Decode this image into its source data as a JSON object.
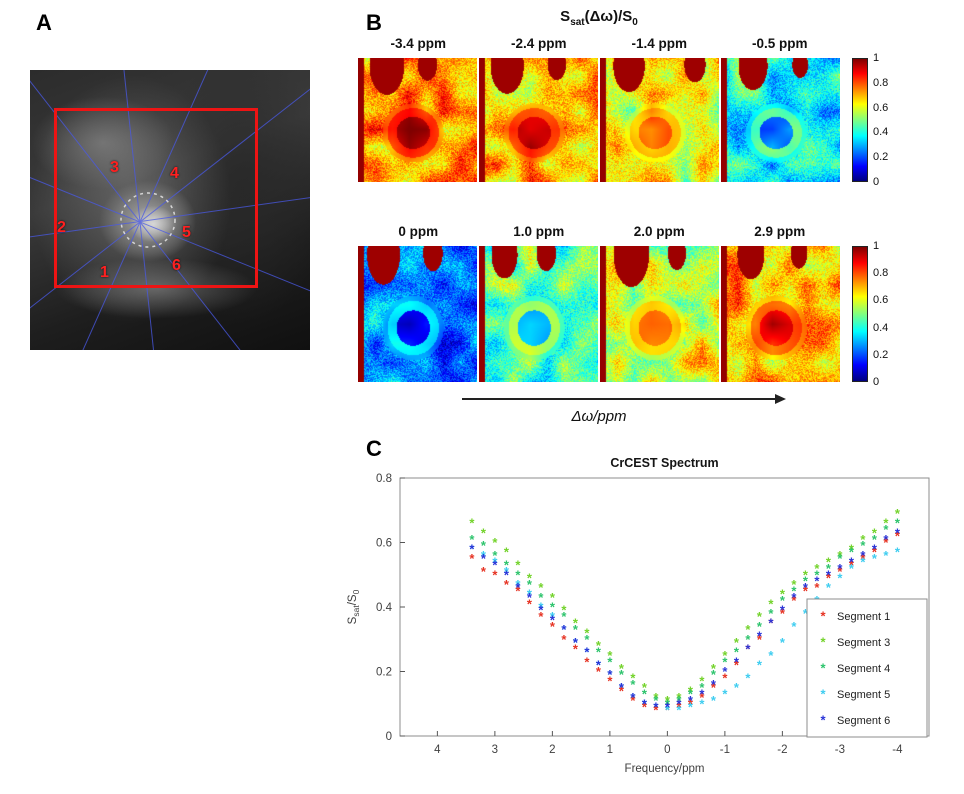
{
  "panel_a": {
    "label": "A",
    "segment_numbers": [
      "1",
      "2",
      "3",
      "4",
      "5",
      "6"
    ]
  },
  "panel_b": {
    "label": "B",
    "title_parts": [
      {
        "t": "S"
      },
      {
        "t": "sat"
      },
      {
        "t": "(Δω)/S"
      },
      {
        "t": "0"
      }
    ],
    "rows": [
      {
        "offset_labels": [
          "-3.4 ppm",
          "-2.4 ppm",
          "-1.4 ppm",
          "-0.5 ppm"
        ],
        "mean_intensities": [
          0.74,
          0.7,
          0.6,
          0.38
        ]
      },
      {
        "offset_labels": [
          "0 ppm",
          "1.0 ppm",
          "2.0 ppm",
          "2.9 ppm"
        ],
        "mean_intensities": [
          0.25,
          0.47,
          0.6,
          0.7
        ]
      }
    ],
    "colorbar_ticks": [
      "1",
      "0.8",
      "0.6",
      "0.4",
      "0.2",
      "0"
    ],
    "colorbar_range": [
      0,
      1
    ],
    "arrow_label": "Δω/ppm"
  },
  "panel_c": {
    "label": "C"
  },
  "chart_data": {
    "type": "scatter",
    "title": "CrCEST Spectrum",
    "xlabel": "Frequency/ppm",
    "ylabel": "Ssat/S0",
    "ylabel_parts": [
      {
        "t": "S"
      },
      {
        "t": "sat",
        "sub": true
      },
      {
        "t": "/S"
      },
      {
        "t": "0",
        "sub": true
      }
    ],
    "x_ticks": [
      4,
      3,
      2,
      1,
      0,
      -1,
      -2,
      -3,
      -4
    ],
    "y_ticks": [
      0,
      0.2,
      0.4,
      0.6,
      0.8
    ],
    "xlim": [
      4.65,
      -4.55
    ],
    "ylim": [
      0,
      0.8
    ],
    "x_axis_reversed": true,
    "marker": "*",
    "legend_position": "inside-right",
    "x": [
      3.4,
      3.2,
      3.0,
      2.8,
      2.6,
      2.4,
      2.2,
      2.0,
      1.8,
      1.6,
      1.4,
      1.2,
      1.0,
      0.8,
      0.6,
      0.4,
      0.2,
      0.0,
      -0.2,
      -0.4,
      -0.6,
      -0.8,
      -1.0,
      -1.2,
      -1.4,
      -1.6,
      -1.8,
      -2.0,
      -2.2,
      -2.4,
      -2.6,
      -2.8,
      -3.0,
      -3.2,
      -3.4,
      -3.6,
      -3.8,
      -4.0
    ],
    "series": [
      {
        "name": "Segment 1",
        "color": "#e63323",
        "values": [
          0.55,
          0.51,
          0.5,
          0.47,
          0.45,
          0.41,
          0.37,
          0.34,
          0.3,
          0.27,
          0.23,
          0.2,
          0.17,
          0.14,
          0.11,
          0.09,
          0.08,
          0.08,
          0.09,
          0.1,
          0.12,
          0.15,
          0.18,
          0.22,
          0.27,
          0.3,
          0.35,
          0.38,
          0.42,
          0.45,
          0.46,
          0.49,
          0.51,
          0.53,
          0.55,
          0.57,
          0.6,
          0.62
        ]
      },
      {
        "name": "Segment 3",
        "color": "#74d32c",
        "values": [
          0.66,
          0.63,
          0.6,
          0.57,
          0.53,
          0.49,
          0.46,
          0.43,
          0.39,
          0.35,
          0.32,
          0.28,
          0.25,
          0.21,
          0.18,
          0.15,
          0.12,
          0.11,
          0.12,
          0.14,
          0.17,
          0.21,
          0.25,
          0.29,
          0.33,
          0.37,
          0.41,
          0.44,
          0.47,
          0.5,
          0.52,
          0.54,
          0.56,
          0.58,
          0.61,
          0.63,
          0.66,
          0.69
        ]
      },
      {
        "name": "Segment 4",
        "color": "#2ec46d",
        "values": [
          0.61,
          0.59,
          0.56,
          0.53,
          0.5,
          0.47,
          0.43,
          0.4,
          0.37,
          0.33,
          0.3,
          0.26,
          0.23,
          0.19,
          0.16,
          0.13,
          0.11,
          0.1,
          0.11,
          0.13,
          0.15,
          0.19,
          0.23,
          0.26,
          0.3,
          0.34,
          0.38,
          0.42,
          0.45,
          0.48,
          0.5,
          0.52,
          0.55,
          0.57,
          0.59,
          0.61,
          0.64,
          0.66
        ]
      },
      {
        "name": "Segment 5",
        "color": "#3fcdf0",
        "values": [
          0.58,
          0.56,
          0.54,
          0.51,
          0.47,
          0.44,
          0.4,
          0.37,
          0.33,
          0.29,
          0.26,
          0.22,
          0.19,
          0.15,
          0.12,
          0.1,
          0.09,
          0.08,
          0.08,
          0.09,
          0.1,
          0.11,
          0.13,
          0.15,
          0.18,
          0.22,
          0.25,
          0.29,
          0.34,
          0.38,
          0.42,
          0.46,
          0.49,
          0.52,
          0.54,
          0.55,
          0.56,
          0.57
        ]
      },
      {
        "name": "Segment 6",
        "color": "#2b35d8",
        "values": [
          0.58,
          0.55,
          0.53,
          0.5,
          0.46,
          0.43,
          0.39,
          0.36,
          0.33,
          0.29,
          0.26,
          0.22,
          0.19,
          0.15,
          0.12,
          0.1,
          0.09,
          0.09,
          0.1,
          0.11,
          0.13,
          0.16,
          0.2,
          0.23,
          0.27,
          0.31,
          0.35,
          0.39,
          0.43,
          0.46,
          0.48,
          0.5,
          0.52,
          0.54,
          0.56,
          0.58,
          0.61,
          0.63
        ]
      }
    ]
  }
}
